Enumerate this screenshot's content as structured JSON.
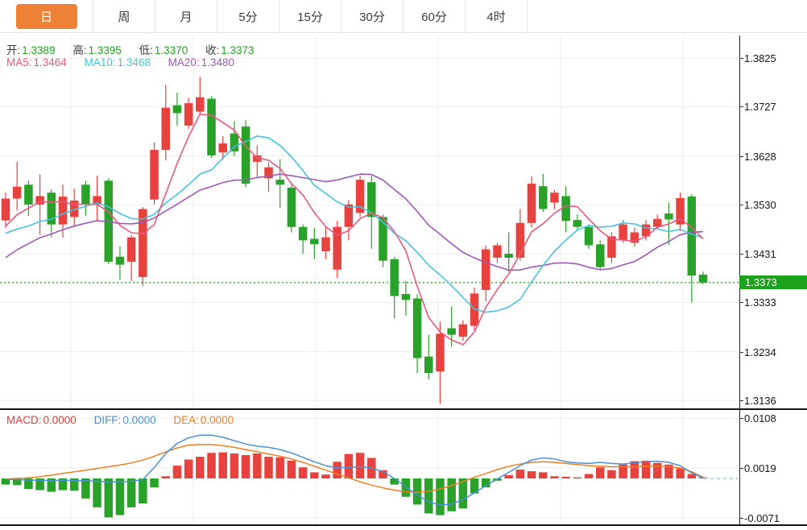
{
  "tabs": {
    "items": [
      {
        "label": "日",
        "active": true
      },
      {
        "label": "周",
        "active": false
      },
      {
        "label": "月",
        "active": false
      },
      {
        "label": "5分",
        "active": false
      },
      {
        "label": "15分",
        "active": false
      },
      {
        "label": "30分",
        "active": false
      },
      {
        "label": "60分",
        "active": false
      },
      {
        "label": "4时",
        "active": false
      }
    ],
    "active_bg": "#ee8136"
  },
  "legend": {
    "ohlc": [
      {
        "label": "开:",
        "value": "1.3389"
      },
      {
        "label": "高:",
        "value": "1.3395"
      },
      {
        "label": "低:",
        "value": "1.3370"
      },
      {
        "label": "收:",
        "value": "1.3373"
      }
    ],
    "ma": [
      {
        "label": "MA5:",
        "value": "1.3464",
        "color": "#e8587d"
      },
      {
        "label": "MA10:",
        "value": "1.3468",
        "color": "#45c2dd"
      },
      {
        "label": "MA20:",
        "value": "1.3480",
        "color": "#9b59b6"
      }
    ]
  },
  "macd_legend": [
    {
      "label": "MACD:",
      "value": "0.0000",
      "color": "#e13b3b"
    },
    {
      "label": "DIFF:",
      "value": "0.0000",
      "color": "#4a90d9"
    },
    {
      "label": "DEA:",
      "value": "0.0000",
      "color": "#ef7d21"
    }
  ],
  "axis": {
    "main_ticks": [
      "1.3825",
      "1.3727",
      "1.3628",
      "1.3530",
      "1.3431",
      "1.3333",
      "1.3234",
      "1.3136"
    ],
    "macd_ticks": [
      "0.0108",
      "0.0019",
      "-0.0071"
    ],
    "price_tag": "1.3373"
  },
  "colors": {
    "up": "#e8423e",
    "down": "#28a228",
    "ma5": "#e8587d",
    "ma10": "#45c2dd",
    "ma20": "#9b59b6",
    "diff": "#4a90d9",
    "dea": "#ef7d21",
    "grid": "#ececec",
    "price_line": "#2ca52c",
    "price_tag_bg": "#1ca21c",
    "dashed_tail": "#8ccae8"
  },
  "chart_data": {
    "type": "candlestick",
    "title": "",
    "legend_position": "top-left",
    "grid": true,
    "price_axis_range": [
      1.3136,
      1.3825
    ],
    "price_ticks": [
      1.3825,
      1.3727,
      1.3628,
      1.353,
      1.3431,
      1.3333,
      1.3234,
      1.3136
    ],
    "current_price": 1.3373,
    "last_candle_ohlc": {
      "open": 1.3389,
      "high": 1.3395,
      "low": 1.337,
      "close": 1.3373
    },
    "ma_values_displayed": {
      "MA5": 1.3464,
      "MA10": 1.3468,
      "MA20": 1.348
    },
    "ma_periods": [
      5,
      10,
      20
    ],
    "ma_prehistory_closes": [
      1.325,
      1.328,
      1.331,
      1.334,
      1.337,
      1.3395,
      1.342,
      1.344,
      1.346,
      1.3475,
      1.348,
      1.347,
      1.3455,
      1.3445,
      1.344,
      1.345,
      1.3465,
      1.348,
      1.3495
    ],
    "candles_ohlc": [
      [
        1.3498,
        1.3554,
        1.3482,
        1.3542
      ],
      [
        1.3542,
        1.3616,
        1.3518,
        1.3566
      ],
      [
        1.357,
        1.3578,
        1.3507,
        1.353
      ],
      [
        1.353,
        1.3591,
        1.3469,
        1.3547
      ],
      [
        1.3554,
        1.356,
        1.3464,
        1.349
      ],
      [
        1.349,
        1.357,
        1.3464,
        1.3546
      ],
      [
        1.3505,
        1.3562,
        1.3485,
        1.3538
      ],
      [
        1.357,
        1.3578,
        1.3507,
        1.3531
      ],
      [
        1.353,
        1.3588,
        1.3497,
        1.3547
      ],
      [
        1.3578,
        1.3583,
        1.341,
        1.3415
      ],
      [
        1.3425,
        1.3446,
        1.3379,
        1.3409
      ],
      [
        1.3415,
        1.3469,
        1.3376,
        1.3464
      ],
      [
        1.3384,
        1.3525,
        1.3366,
        1.3521
      ],
      [
        1.354,
        1.3655,
        1.353,
        1.364
      ],
      [
        1.364,
        1.3771,
        1.3619,
        1.3725
      ],
      [
        1.373,
        1.3755,
        1.3689,
        1.3714
      ],
      [
        1.3689,
        1.3745,
        1.3682,
        1.3734
      ],
      [
        1.3717,
        1.3787,
        1.371,
        1.3746
      ],
      [
        1.3743,
        1.3748,
        1.3624,
        1.3629
      ],
      [
        1.3635,
        1.3668,
        1.362,
        1.3653
      ],
      [
        1.3673,
        1.3698,
        1.3627,
        1.3637
      ],
      [
        1.3687,
        1.37,
        1.3565,
        1.3572
      ],
      [
        1.3616,
        1.3649,
        1.3583,
        1.3629
      ],
      [
        1.3583,
        1.3615,
        1.3556,
        1.3605
      ],
      [
        1.358,
        1.3621,
        1.3523,
        1.357
      ],
      [
        1.3564,
        1.357,
        1.3474,
        1.3485
      ],
      [
        1.3485,
        1.349,
        1.3431,
        1.3458
      ],
      [
        1.3461,
        1.3483,
        1.342,
        1.345
      ],
      [
        1.3436,
        1.3485,
        1.342,
        1.3464
      ],
      [
        1.3399,
        1.3497,
        1.3382,
        1.3485
      ],
      [
        1.3485,
        1.3539,
        1.3458,
        1.353
      ],
      [
        1.3513,
        1.3588,
        1.3505,
        1.358
      ],
      [
        1.3575,
        1.3588,
        1.3441,
        1.3505
      ],
      [
        1.3505,
        1.351,
        1.3404,
        1.3417
      ],
      [
        1.342,
        1.3425,
        1.3301,
        1.3346
      ],
      [
        1.335,
        1.3376,
        1.3306,
        1.3338
      ],
      [
        1.3341,
        1.335,
        1.3191,
        1.3221
      ],
      [
        1.3224,
        1.3268,
        1.3178,
        1.3191
      ],
      [
        1.3194,
        1.3294,
        1.3129,
        1.327
      ],
      [
        1.3281,
        1.3325,
        1.3244,
        1.3268
      ],
      [
        1.3264,
        1.3297,
        1.3256,
        1.3289
      ],
      [
        1.3286,
        1.3363,
        1.3277,
        1.3351
      ],
      [
        1.3358,
        1.3448,
        1.3335,
        1.344
      ],
      [
        1.3423,
        1.3453,
        1.3412,
        1.3448
      ],
      [
        1.3431,
        1.3474,
        1.3395,
        1.3423
      ],
      [
        1.3423,
        1.3521,
        1.3417,
        1.3493
      ],
      [
        1.3493,
        1.3587,
        1.3484,
        1.3572
      ],
      [
        1.3567,
        1.3592,
        1.3515,
        1.3521
      ],
      [
        1.3534,
        1.3559,
        1.3521,
        1.3554
      ],
      [
        1.3547,
        1.3567,
        1.3474,
        1.3497
      ],
      [
        1.3499,
        1.351,
        1.3477,
        1.3485
      ],
      [
        1.3485,
        1.349,
        1.3441,
        1.3448
      ],
      [
        1.345,
        1.3458,
        1.3399,
        1.3404
      ],
      [
        1.3423,
        1.3474,
        1.3412,
        1.3466
      ],
      [
        1.3459,
        1.3499,
        1.3453,
        1.349
      ],
      [
        1.3453,
        1.3483,
        1.3445,
        1.3474
      ],
      [
        1.3466,
        1.3499,
        1.3458,
        1.349
      ],
      [
        1.3485,
        1.351,
        1.348,
        1.3501
      ],
      [
        1.3512,
        1.3534,
        1.3449,
        1.35
      ],
      [
        1.349,
        1.3554,
        1.3477,
        1.3543
      ],
      [
        1.3546,
        1.3551,
        1.3333,
        1.3387
      ],
      [
        1.3389,
        1.3395,
        1.337,
        1.3373
      ]
    ],
    "macd": {
      "axis_range": [
        -0.0071,
        0.0108
      ],
      "ticks": [
        0.0108,
        0.0019,
        -0.0071
      ],
      "displayed": {
        "MACD": 0.0,
        "DIFF": 0.0,
        "DEA": 0.0
      },
      "hist": [
        -0.0011,
        -0.0012,
        -0.0019,
        -0.0021,
        -0.0024,
        -0.0021,
        -0.0022,
        -0.0036,
        -0.0052,
        -0.007,
        -0.0066,
        -0.0052,
        -0.0045,
        -0.0016,
        0.0004,
        0.0023,
        0.0034,
        0.0039,
        0.0046,
        0.0047,
        0.0045,
        0.0042,
        0.0045,
        0.0039,
        0.0038,
        0.0032,
        0.002,
        0.0011,
        0.0007,
        0.003,
        0.0044,
        0.0046,
        0.0037,
        0.0015,
        -0.0011,
        -0.0033,
        -0.0047,
        -0.0063,
        -0.0066,
        -0.0059,
        -0.0054,
        -0.0027,
        -0.0016,
        -0.0004,
        0.0006,
        0.0016,
        0.0013,
        0.0011,
        0.0004,
        0.0003,
        0.0002,
        0.0008,
        0.002,
        0.0015,
        0.0025,
        0.0031,
        0.0032,
        0.0028,
        0.0025,
        0.0018,
        0.0008,
        0.0002
      ],
      "diff": [
        -0.0002,
        -0.0002,
        -0.0003,
        -0.0003,
        -0.0004,
        -0.0003,
        -0.0004,
        -0.0004,
        -0.0005,
        -0.0006,
        -0.0006,
        -0.0005,
        -0.0002,
        0.002,
        0.0045,
        0.0063,
        0.0073,
        0.0078,
        0.0078,
        0.0074,
        0.0068,
        0.0062,
        0.0058,
        0.0056,
        0.0052,
        0.0046,
        0.0038,
        0.003,
        0.0023,
        0.0019,
        0.002,
        0.0021,
        0.0019,
        0.0012,
        0.0,
        -0.0015,
        -0.003,
        -0.0042,
        -0.0048,
        -0.0046,
        -0.0038,
        -0.0026,
        -0.0013,
        -0.0001,
        0.0011,
        0.0023,
        0.0033,
        0.0037,
        0.0035,
        0.003,
        0.0028,
        0.0027,
        0.0029,
        0.0027,
        0.0026,
        0.0028,
        0.003,
        0.0031,
        0.0029,
        0.0023,
        0.001,
        0.0001
      ],
      "dea": [
        -0.0001,
        0.0,
        0.0001,
        0.0003,
        0.0006,
        0.0009,
        0.0012,
        0.0015,
        0.0018,
        0.0021,
        0.0024,
        0.0028,
        0.0033,
        0.004,
        0.0048,
        0.0055,
        0.006,
        0.0061,
        0.0061,
        0.0059,
        0.0056,
        0.0052,
        0.0048,
        0.0044,
        0.004,
        0.0035,
        0.0029,
        0.0022,
        0.0015,
        0.0008,
        0.0001,
        -0.0006,
        -0.0012,
        -0.0017,
        -0.0021,
        -0.0024,
        -0.0025,
        -0.0023,
        -0.0019,
        -0.0013,
        -0.0006,
        0.0002,
        0.0009,
        0.0016,
        0.0022,
        0.0026,
        0.0029,
        0.003,
        0.0029,
        0.0027,
        0.0025,
        0.0023,
        0.0022,
        0.0021,
        0.0021,
        0.0021,
        0.0022,
        0.0022,
        0.0021,
        0.0019,
        0.0012,
        0.0002
      ]
    }
  }
}
